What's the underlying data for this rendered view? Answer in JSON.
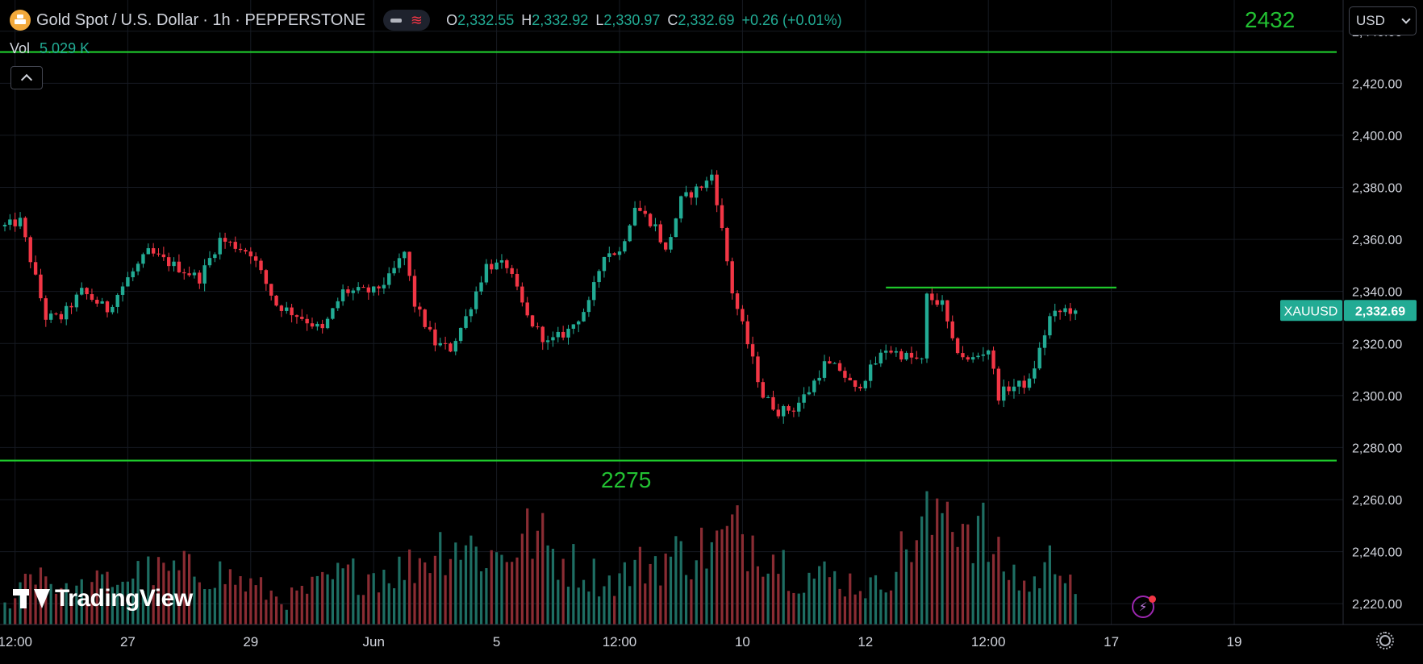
{
  "header": {
    "symbol_title": "Gold Spot",
    "title_separator": "/",
    "symbol_title_2": "U.S. Dollar",
    "interval_text": "· 1h · PEPPERSTONE",
    "pill_icon": "dash-icon",
    "pill_icon_2": "wave-icon",
    "pill_wave_glyph": "≋",
    "ohlc": {
      "o_key": "O",
      "o_val": "2,332.55",
      "h_key": "H",
      "h_val": "2,332.92",
      "l_key": "L",
      "l_val": "2,330.97",
      "c_key": "C",
      "c_val": "2,332.69",
      "change": "+0.26 (+0.01%)"
    },
    "vol_key": "Vol",
    "vol_val": "5.029 K"
  },
  "currency": {
    "label": "USD"
  },
  "branding": {
    "logo_text": "TradingView"
  },
  "colors": {
    "up": "#22ab94",
    "down": "#f23645",
    "hline": "#1fcd2d",
    "annotation": "#22c132",
    "price_tag": "#22ab94",
    "grid": "#161a22",
    "axis_text": "#d1d4dc"
  },
  "chart_data": {
    "type": "candlestick",
    "y_axis": {
      "min": 2212,
      "max": 2452,
      "ticks": [
        2440,
        2420,
        2400,
        2380,
        2360,
        2340,
        2320,
        2300,
        2280,
        2260,
        2240,
        2220
      ],
      "tick_labels": [
        "2,440.00",
        "2,420.00",
        "2,400.00",
        "2,380.00",
        "2,360.00",
        "2,340.00",
        "2,320.00",
        "2,300.00",
        "2,280.00",
        "2,260.00",
        "2,240.00",
        "2,220.00"
      ]
    },
    "x_axis": {
      "labels": [
        "12:00",
        "27",
        "29",
        "Jun",
        "5",
        "12:00",
        "10",
        "12",
        "12:00",
        "17",
        "19"
      ],
      "label_positions_bars": [
        2,
        24,
        48,
        72,
        96,
        120,
        144,
        168,
        192,
        216,
        240
      ]
    },
    "price_tag": {
      "symbol": "XAUUSD",
      "value": "2,332.69",
      "price": 2332.69
    },
    "horizontal_lines": [
      {
        "price": 2432,
        "label": "2432",
        "start_bar": -10,
        "end_bar": 260
      },
      {
        "price": 2275,
        "label": "2275",
        "start_bar": -10,
        "end_bar": 260
      },
      {
        "price": 2341.5,
        "label": "",
        "start_bar": 172,
        "end_bar": 217
      }
    ],
    "waypoints": [
      [
        0,
        2365
      ],
      [
        3,
        2367
      ],
      [
        6,
        2345
      ],
      [
        8,
        2330
      ],
      [
        11,
        2330
      ],
      [
        15,
        2340
      ],
      [
        20,
        2333
      ],
      [
        24,
        2345
      ],
      [
        28,
        2355
      ],
      [
        33,
        2350
      ],
      [
        38,
        2345
      ],
      [
        42,
        2360
      ],
      [
        48,
        2355
      ],
      [
        53,
        2335
      ],
      [
        58,
        2330
      ],
      [
        62,
        2325
      ],
      [
        66,
        2340
      ],
      [
        72,
        2340
      ],
      [
        75,
        2345
      ],
      [
        78,
        2355
      ],
      [
        80,
        2335
      ],
      [
        84,
        2320
      ],
      [
        87,
        2318
      ],
      [
        90,
        2330
      ],
      [
        94,
        2350
      ],
      [
        98,
        2350
      ],
      [
        102,
        2330
      ],
      [
        106,
        2320
      ],
      [
        110,
        2325
      ],
      [
        114,
        2335
      ],
      [
        117,
        2355
      ],
      [
        120,
        2355
      ],
      [
        123,
        2373
      ],
      [
        127,
        2365
      ],
      [
        129,
        2355
      ],
      [
        132,
        2375
      ],
      [
        137,
        2382
      ],
      [
        138,
        2385
      ],
      [
        139,
        2375
      ],
      [
        142,
        2340
      ],
      [
        145,
        2320
      ],
      [
        148,
        2300
      ],
      [
        151,
        2294
      ],
      [
        154,
        2295
      ],
      [
        157,
        2302
      ],
      [
        160,
        2312
      ],
      [
        163,
        2310
      ],
      [
        166,
        2302
      ],
      [
        169,
        2310
      ],
      [
        172,
        2318
      ],
      [
        176,
        2315
      ],
      [
        179,
        2313
      ],
      [
        180,
        2338
      ],
      [
        183,
        2335
      ],
      [
        185,
        2320
      ],
      [
        188,
        2313
      ],
      [
        192,
        2318
      ],
      [
        194,
        2300
      ],
      [
        196,
        2303
      ],
      [
        200,
        2305
      ],
      [
        204,
        2330
      ],
      [
        207,
        2333
      ],
      [
        209,
        2332.69
      ]
    ],
    "volume_peaks": [
      [
        0,
        0.15
      ],
      [
        6,
        0.5
      ],
      [
        12,
        0.25
      ],
      [
        24,
        0.4
      ],
      [
        40,
        0.45
      ],
      [
        55,
        0.2
      ],
      [
        66,
        0.4
      ],
      [
        78,
        0.45
      ],
      [
        87,
        0.7
      ],
      [
        96,
        0.55
      ],
      [
        103,
        0.75
      ],
      [
        108,
        0.55
      ],
      [
        118,
        0.35
      ],
      [
        125,
        0.5
      ],
      [
        139,
        0.65
      ],
      [
        142,
        0.75
      ],
      [
        147,
        0.7
      ],
      [
        155,
        0.4
      ],
      [
        160,
        0.4
      ],
      [
        170,
        0.3
      ],
      [
        180,
        0.85
      ],
      [
        182,
        0.75
      ],
      [
        183,
        1.0
      ],
      [
        191,
        0.75
      ],
      [
        193,
        0.55
      ],
      [
        200,
        0.3
      ],
      [
        205,
        0.55
      ],
      [
        207,
        0.55
      ],
      [
        209,
        0.3
      ]
    ],
    "last_bar_index": 209,
    "grid": true
  }
}
